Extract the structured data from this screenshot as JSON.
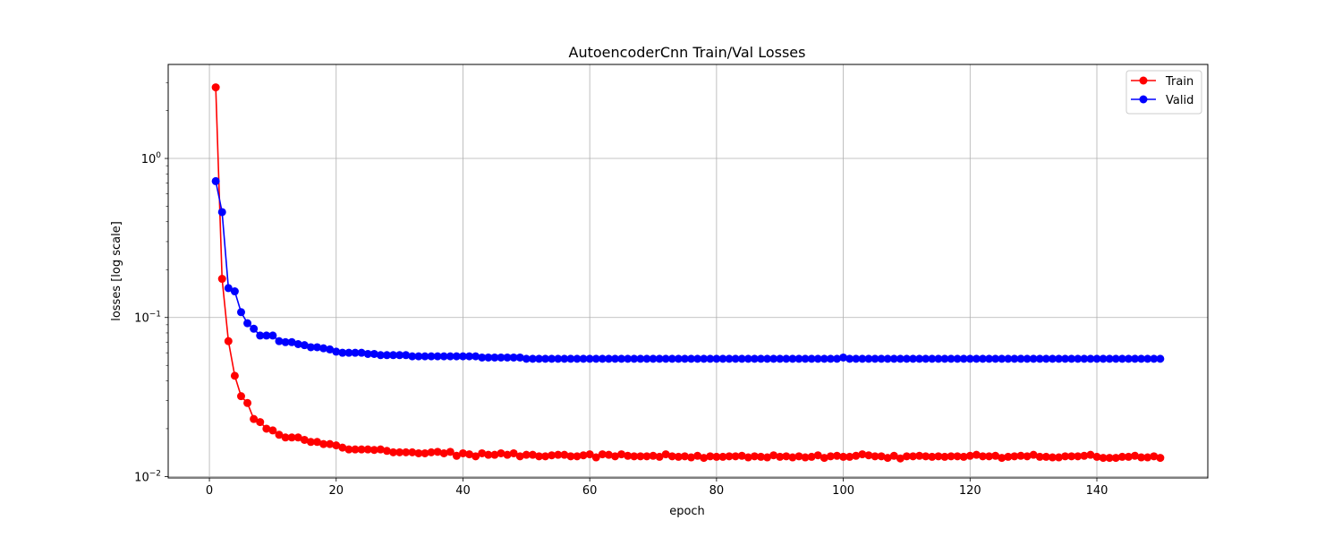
{
  "chart_data": {
    "type": "line",
    "title": "AutoencoderCnn Train/Val Losses",
    "xlabel": "epoch",
    "ylabel": "losses [log scale]",
    "xlim": [
      -6.5,
      157.5
    ],
    "ylim": [
      0.0098,
      3.9
    ],
    "yscale": "log",
    "grid": true,
    "legend_position": "upper right",
    "x_ticks": [
      {
        "value": 0,
        "label": "0"
      },
      {
        "value": 20,
        "label": "20"
      },
      {
        "value": 40,
        "label": "40"
      },
      {
        "value": 60,
        "label": "60"
      },
      {
        "value": 80,
        "label": "80"
      },
      {
        "value": 100,
        "label": "100"
      },
      {
        "value": 120,
        "label": "120"
      },
      {
        "value": 140,
        "label": "140"
      }
    ],
    "y_ticks": [
      {
        "value": 0.01,
        "label_base": "10",
        "label_exp": "−2"
      },
      {
        "value": 0.1,
        "label_base": "10",
        "label_exp": "−1"
      },
      {
        "value": 1,
        "label_base": "10",
        "label_exp": "0"
      }
    ],
    "series": [
      {
        "name": "Train",
        "color": "#ff0000",
        "marker": "circle",
        "x": [
          1,
          2,
          3,
          4,
          5,
          6,
          7,
          8,
          9,
          10,
          11,
          12,
          13,
          14,
          15,
          16,
          17,
          18,
          19,
          20,
          21,
          22,
          23,
          24,
          25,
          26,
          27,
          28,
          29,
          30,
          31,
          32,
          33,
          34,
          35,
          36,
          37,
          38,
          39,
          40,
          41,
          42,
          43,
          44,
          45,
          46,
          47,
          48,
          49,
          50,
          51,
          52,
          53,
          54,
          55,
          56,
          57,
          58,
          59,
          60,
          61,
          62,
          63,
          64,
          65,
          66,
          67,
          68,
          69,
          70,
          71,
          72,
          73,
          74,
          75,
          76,
          77,
          78,
          79,
          80,
          81,
          82,
          83,
          84,
          85,
          86,
          87,
          88,
          89,
          90,
          91,
          92,
          93,
          94,
          95,
          96,
          97,
          98,
          99,
          100,
          101,
          102,
          103,
          104,
          105,
          106,
          107,
          108,
          109,
          110,
          111,
          112,
          113,
          114,
          115,
          116,
          117,
          118,
          119,
          120,
          121,
          122,
          123,
          124,
          125,
          126,
          127,
          128,
          129,
          130,
          131,
          132,
          133,
          134,
          135,
          136,
          137,
          138,
          139,
          140,
          141,
          142,
          143,
          144,
          145,
          146,
          147,
          148,
          149,
          150
        ],
        "values": [
          2.8,
          0.175,
          0.071,
          0.043,
          0.032,
          0.029,
          0.023,
          0.022,
          0.02,
          0.0195,
          0.0183,
          0.0176,
          0.0176,
          0.0176,
          0.017,
          0.0165,
          0.0165,
          0.016,
          0.016,
          0.0157,
          0.0152,
          0.0148,
          0.0148,
          0.0148,
          0.0148,
          0.0147,
          0.0148,
          0.0145,
          0.0142,
          0.0142,
          0.0142,
          0.0142,
          0.014,
          0.014,
          0.0142,
          0.0143,
          0.014,
          0.0143,
          0.0135,
          0.014,
          0.0138,
          0.0134,
          0.014,
          0.0137,
          0.0137,
          0.014,
          0.0137,
          0.014,
          0.0134,
          0.0137,
          0.0137,
          0.0134,
          0.0134,
          0.0136,
          0.0137,
          0.0137,
          0.0134,
          0.0134,
          0.0136,
          0.0138,
          0.0132,
          0.0138,
          0.0137,
          0.0134,
          0.0138,
          0.0135,
          0.0134,
          0.0134,
          0.0134,
          0.0135,
          0.0133,
          0.0138,
          0.0134,
          0.0133,
          0.0134,
          0.0132,
          0.0135,
          0.0131,
          0.0134,
          0.0133,
          0.0133,
          0.0134,
          0.0134,
          0.0135,
          0.0132,
          0.0134,
          0.0133,
          0.0132,
          0.0136,
          0.0133,
          0.0134,
          0.0132,
          0.0134,
          0.0132,
          0.0133,
          0.0136,
          0.0131,
          0.0134,
          0.0135,
          0.0133,
          0.0133,
          0.0135,
          0.0138,
          0.0136,
          0.0134,
          0.0134,
          0.0131,
          0.0135,
          0.013,
          0.0134,
          0.0134,
          0.0135,
          0.0134,
          0.0133,
          0.0134,
          0.0133,
          0.0134,
          0.0134,
          0.0133,
          0.0135,
          0.0137,
          0.0134,
          0.0134,
          0.0135,
          0.0131,
          0.0133,
          0.0134,
          0.0135,
          0.0134,
          0.0137,
          0.0133,
          0.0133,
          0.0132,
          0.0132,
          0.0134,
          0.0134,
          0.0134,
          0.0135,
          0.0137,
          0.0133,
          0.0131,
          0.0131,
          0.0131,
          0.0133,
          0.0133,
          0.0135,
          0.0132,
          0.0132,
          0.0134,
          0.0131
        ]
      },
      {
        "name": "Valid",
        "color": "#0000ff",
        "marker": "circle",
        "x": [
          1,
          2,
          3,
          4,
          5,
          6,
          7,
          8,
          9,
          10,
          11,
          12,
          13,
          14,
          15,
          16,
          17,
          18,
          19,
          20,
          21,
          22,
          23,
          24,
          25,
          26,
          27,
          28,
          29,
          30,
          31,
          32,
          33,
          34,
          35,
          36,
          37,
          38,
          39,
          40,
          41,
          42,
          43,
          44,
          45,
          46,
          47,
          48,
          49,
          50,
          51,
          52,
          53,
          54,
          55,
          56,
          57,
          58,
          59,
          60,
          61,
          62,
          63,
          64,
          65,
          66,
          67,
          68,
          69,
          70,
          71,
          72,
          73,
          74,
          75,
          76,
          77,
          78,
          79,
          80,
          81,
          82,
          83,
          84,
          85,
          86,
          87,
          88,
          89,
          90,
          91,
          92,
          93,
          94,
          95,
          96,
          97,
          98,
          99,
          100,
          101,
          102,
          103,
          104,
          105,
          106,
          107,
          108,
          109,
          110,
          111,
          112,
          113,
          114,
          115,
          116,
          117,
          118,
          119,
          120,
          121,
          122,
          123,
          124,
          125,
          126,
          127,
          128,
          129,
          130,
          131,
          132,
          133,
          134,
          135,
          136,
          137,
          138,
          139,
          140,
          141,
          142,
          143,
          144,
          145,
          146,
          147,
          148,
          149,
          150
        ],
        "values": [
          0.72,
          0.46,
          0.153,
          0.146,
          0.108,
          0.092,
          0.085,
          0.077,
          0.077,
          0.077,
          0.071,
          0.07,
          0.07,
          0.068,
          0.067,
          0.065,
          0.065,
          0.064,
          0.063,
          0.061,
          0.06,
          0.06,
          0.06,
          0.06,
          0.059,
          0.059,
          0.058,
          0.058,
          0.058,
          0.058,
          0.058,
          0.057,
          0.057,
          0.057,
          0.057,
          0.057,
          0.057,
          0.057,
          0.057,
          0.057,
          0.057,
          0.057,
          0.056,
          0.056,
          0.056,
          0.056,
          0.056,
          0.056,
          0.056,
          0.055,
          0.055,
          0.055,
          0.055,
          0.055,
          0.055,
          0.055,
          0.055,
          0.055,
          0.055,
          0.055,
          0.055,
          0.055,
          0.055,
          0.055,
          0.055,
          0.055,
          0.055,
          0.055,
          0.055,
          0.055,
          0.055,
          0.055,
          0.055,
          0.055,
          0.055,
          0.055,
          0.055,
          0.055,
          0.055,
          0.055,
          0.055,
          0.055,
          0.055,
          0.055,
          0.055,
          0.055,
          0.055,
          0.055,
          0.055,
          0.055,
          0.055,
          0.055,
          0.055,
          0.055,
          0.055,
          0.055,
          0.055,
          0.055,
          0.055,
          0.056,
          0.055,
          0.055,
          0.055,
          0.055,
          0.055,
          0.055,
          0.055,
          0.055,
          0.055,
          0.055,
          0.055,
          0.055,
          0.055,
          0.055,
          0.055,
          0.055,
          0.055,
          0.055,
          0.055,
          0.055,
          0.055,
          0.055,
          0.055,
          0.055,
          0.055,
          0.055,
          0.055,
          0.055,
          0.055,
          0.055,
          0.055,
          0.055,
          0.055,
          0.055,
          0.055,
          0.055,
          0.055,
          0.055,
          0.055,
          0.055,
          0.055,
          0.055,
          0.055,
          0.055,
          0.055,
          0.055,
          0.055,
          0.055,
          0.055,
          0.055
        ]
      }
    ]
  }
}
